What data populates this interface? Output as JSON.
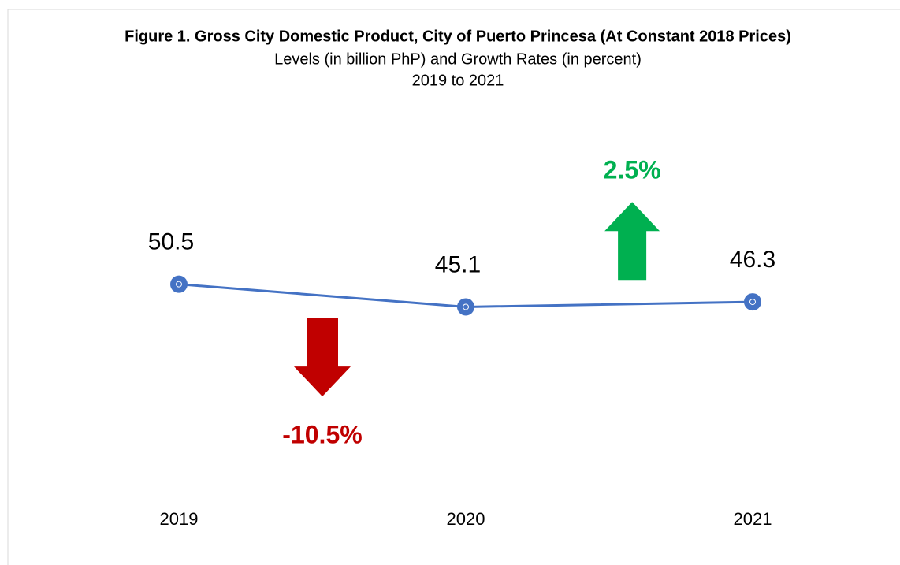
{
  "chart_data": {
    "type": "line",
    "title": "Figure 1. Gross City Domestic Product, City of Puerto Princesa (At Constant 2018 Prices)",
    "subtitle": [
      "Levels (in billion PhP) and Growth Rates (in percent)",
      "2019 to 2021"
    ],
    "categories": [
      "2019",
      "2020",
      "2021"
    ],
    "series": [
      {
        "name": "Gross City Domestic Product",
        "color": "#4472c4",
        "values": [
          50.5,
          45.1,
          46.3
        ]
      }
    ],
    "ylim": [
      0,
      90
    ],
    "growth_rates": {
      "values": [
        -10.5,
        2.5
      ],
      "value_labels": [
        "-10.5%",
        "2.5%"
      ],
      "colors": [
        "#c00000",
        "#00b050"
      ]
    }
  }
}
